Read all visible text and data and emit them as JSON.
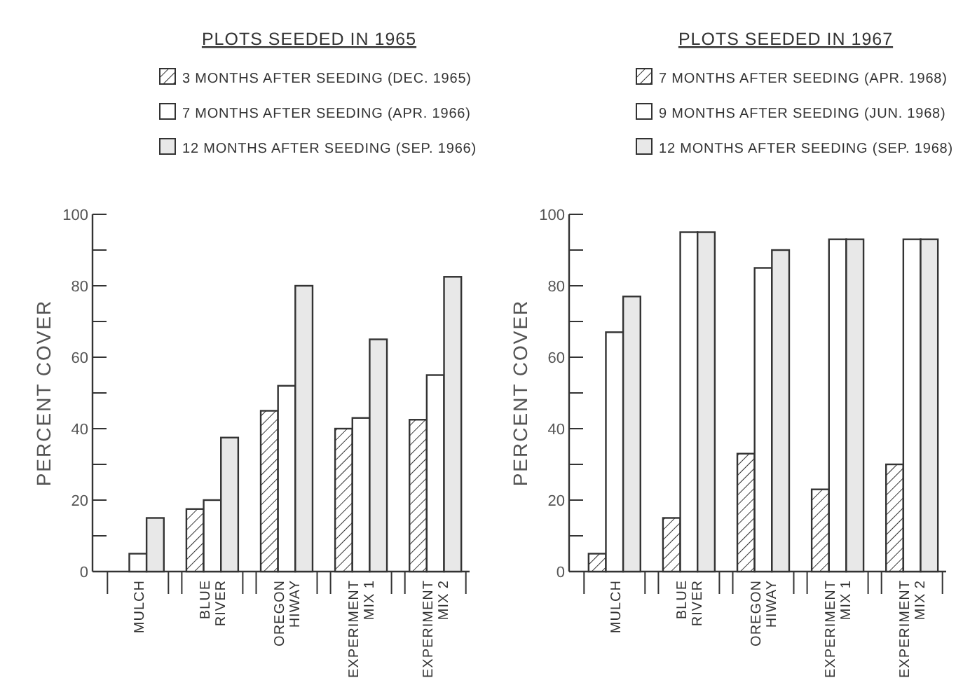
{
  "chart_data": [
    {
      "type": "bar",
      "title": "PLOTS SEEDED IN 1965",
      "ylabel": "PERCENT COVER",
      "categories": [
        "MULCH",
        "BLUE RIVER",
        "OREGON HIWAY",
        "EXPERIMENT MIX 1",
        "EXPERIMENT MIX 2"
      ],
      "ylim": [
        0,
        100
      ],
      "yticks": [
        0,
        {
          "value": 10,
          "label": null
        },
        20,
        {
          "value": 30,
          "label": null
        },
        40,
        {
          "value": 50,
          "label": null
        },
        60,
        {
          "value": 70,
          "label": null
        },
        80,
        {
          "value": 90,
          "label": null
        },
        100
      ],
      "legend": "top",
      "series": [
        {
          "name": "3 MONTHS AFTER SEEDING (DEC. 1965)",
          "color": "#333333",
          "values": [
            null,
            17.5,
            45,
            40,
            42.5
          ]
        },
        {
          "name": "7 MONTHS AFTER SEEDING (APR. 1966)",
          "color": "#ffffff",
          "values": [
            5,
            20,
            52,
            43,
            55
          ]
        },
        {
          "name": "12 MONTHS AFTER SEEDING (SEP. 1966)",
          "color": "#e8e8e8",
          "values": [
            15,
            37.5,
            80,
            65,
            82.5
          ]
        }
      ]
    },
    {
      "type": "bar",
      "title": "PLOTS SEEDED IN 1967",
      "ylabel": "PERCENT COVER",
      "categories": [
        "MULCH",
        "BLUE RIVER",
        "OREGON HIWAY",
        "EXPERIMENT MIX 1",
        "EXPERIMENT MIX 2"
      ],
      "ylim": [
        0,
        100
      ],
      "yticks": [
        0,
        {
          "value": 10,
          "label": null
        },
        20,
        {
          "value": 30,
          "label": null
        },
        40,
        {
          "value": 50,
          "label": null
        },
        60,
        {
          "value": 70,
          "label": null
        },
        80,
        {
          "value": 90,
          "label": null
        },
        100
      ],
      "legend": "top",
      "series": [
        {
          "name": "7 MONTHS AFTER SEEDING (APR. 1968)",
          "color": "#333333",
          "values": [
            5,
            15,
            33,
            23,
            30
          ]
        },
        {
          "name": "9 MONTHS AFTER SEEDING (JUN. 1968)",
          "color": "#ffffff",
          "values": [
            67,
            95,
            85,
            93,
            93
          ]
        },
        {
          "name": "12 MONTHS AFTER SEEDING (SEP. 1968)",
          "color": "#e8e8e8",
          "values": [
            77,
            95,
            90,
            93,
            93
          ]
        }
      ]
    }
  ]
}
